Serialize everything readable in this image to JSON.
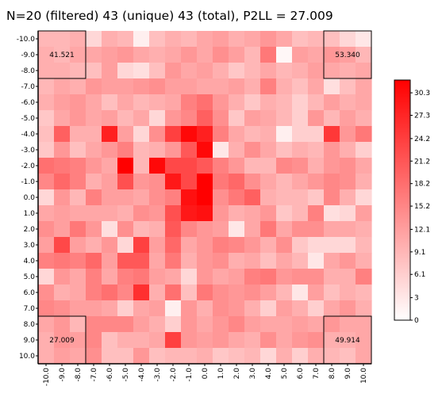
{
  "chart_data": {
    "type": "heatmap",
    "title": "N=20 (filtered) 43 (unique) 43 (total), P2LL = 27.009",
    "x_ticks": [
      "-10.0",
      "-9.0",
      "-8.0",
      "-7.0",
      "-6.0",
      "-5.0",
      "-4.0",
      "-3.0",
      "-2.0",
      "-1.0",
      "0.0",
      "1.0",
      "2.0",
      "3.0",
      "4.0",
      "5.0",
      "6.0",
      "7.0",
      "8.0",
      "9.0",
      "10.0"
    ],
    "y_ticks": [
      "-10.0",
      "-9.0",
      "-8.0",
      "-7.0",
      "-6.0",
      "-5.0",
      "-4.0",
      "-3.0",
      "-2.0",
      "-1.0",
      "0.0",
      "1.0",
      "2.0",
      "3.0",
      "4.0",
      "5.0",
      "6.0",
      "7.0",
      "8.0",
      "9.0",
      "10.0"
    ],
    "xlim": [
      -10,
      10
    ],
    "ylim": [
      -10,
      10
    ],
    "y_direction": "down",
    "colormap": {
      "low": "#ffffff",
      "high": "#ff0000"
    },
    "colorbar": {
      "min": 0,
      "max": 32,
      "ticks": [
        "0",
        "3",
        "6.1",
        "9.1",
        "12.1",
        "15.2",
        "18.2",
        "21.2",
        "24.2",
        "27.3",
        "30.3"
      ]
    },
    "corner_values": {
      "top_left": "41.521",
      "top_right": "53.340",
      "bottom_left": "27.009",
      "bottom_right": "49.914"
    },
    "grid": false,
    "values": [
      [
        9,
        9,
        10,
        5,
        10,
        9,
        2,
        8,
        10,
        9,
        11,
        12,
        10,
        11,
        13,
        11,
        8,
        9,
        8,
        5,
        3
      ],
      [
        10,
        9,
        11,
        11,
        12,
        13,
        11,
        10,
        11,
        13,
        11,
        14,
        12,
        9,
        17,
        1,
        12,
        11,
        13,
        12,
        9
      ],
      [
        10,
        10,
        9,
        8,
        12,
        5,
        4,
        8,
        13,
        11,
        12,
        10,
        7,
        9,
        11,
        9,
        10,
        12,
        11,
        10,
        11
      ],
      [
        9,
        11,
        10,
        13,
        12,
        12,
        13,
        14,
        12,
        12,
        11,
        11,
        12,
        10,
        16,
        10,
        8,
        11,
        4,
        8,
        11
      ],
      [
        10,
        12,
        13,
        11,
        8,
        11,
        9,
        10,
        11,
        16,
        18,
        13,
        10,
        7,
        10,
        9,
        6,
        9,
        12,
        10,
        11
      ],
      [
        7,
        11,
        13,
        11,
        12,
        9,
        11,
        5,
        13,
        15,
        20,
        14,
        7,
        12,
        11,
        9,
        6,
        13,
        9,
        12,
        10
      ],
      [
        8,
        20,
        10,
        10,
        28,
        12,
        5,
        14,
        24,
        31,
        28,
        16,
        11,
        9,
        10,
        2,
        6,
        6,
        25,
        13,
        17
      ],
      [
        7,
        13,
        8,
        11,
        13,
        16,
        9,
        10,
        13,
        21,
        31,
        3,
        10,
        14,
        11,
        8,
        10,
        9,
        13,
        10,
        6
      ],
      [
        18,
        17,
        16,
        13,
        11,
        32,
        9,
        31,
        23,
        23,
        21,
        16,
        13,
        9,
        9,
        15,
        14,
        10,
        13,
        14,
        11
      ],
      [
        15,
        19,
        16,
        10,
        12,
        22,
        13,
        14,
        29,
        23,
        32,
        17,
        19,
        14,
        11,
        9,
        11,
        13,
        15,
        14,
        10
      ],
      [
        5,
        13,
        9,
        16,
        12,
        12,
        11,
        14,
        16,
        30,
        32,
        14,
        17,
        20,
        10,
        9,
        9,
        7,
        15,
        10,
        5
      ],
      [
        11,
        12,
        11,
        11,
        11,
        10,
        14,
        13,
        22,
        29,
        30,
        13,
        10,
        11,
        13,
        7,
        9,
        16,
        4,
        5,
        12
      ],
      [
        14,
        12,
        17,
        13,
        4,
        14,
        9,
        10,
        21,
        15,
        13,
        12,
        3,
        11,
        17,
        11,
        14,
        14,
        11,
        11,
        10
      ],
      [
        12,
        23,
        12,
        10,
        13,
        5,
        24,
        12,
        19,
        11,
        13,
        16,
        15,
        13,
        10,
        14,
        7,
        5,
        5,
        5,
        9
      ],
      [
        16,
        17,
        16,
        19,
        12,
        21,
        21,
        11,
        17,
        10,
        13,
        14,
        10,
        11,
        8,
        11,
        9,
        3,
        11,
        13,
        10
      ],
      [
        5,
        13,
        11,
        16,
        11,
        16,
        17,
        12,
        11,
        5,
        13,
        11,
        12,
        16,
        17,
        13,
        14,
        14,
        10,
        10,
        16
      ],
      [
        14,
        10,
        11,
        16,
        18,
        15,
        26,
        10,
        18,
        8,
        17,
        14,
        13,
        14,
        12,
        9,
        3,
        12,
        8,
        10,
        9
      ],
      [
        15,
        14,
        12,
        12,
        11,
        6,
        11,
        12,
        2,
        13,
        10,
        14,
        13,
        10,
        6,
        12,
        10,
        6,
        11,
        13,
        10
      ],
      [
        11,
        13,
        9,
        15,
        15,
        15,
        12,
        10,
        6,
        13,
        11,
        13,
        15,
        12,
        11,
        11,
        12,
        11,
        13,
        11,
        11
      ],
      [
        10,
        13,
        12,
        15,
        8,
        10,
        10,
        11,
        24,
        13,
        12,
        13,
        11,
        10,
        14,
        11,
        13,
        14,
        10,
        10,
        11
      ],
      [
        10,
        12,
        11,
        14,
        8,
        8,
        13,
        8,
        9,
        9,
        10,
        7,
        8,
        9,
        5,
        10,
        6,
        10,
        9,
        8,
        11
      ]
    ]
  }
}
